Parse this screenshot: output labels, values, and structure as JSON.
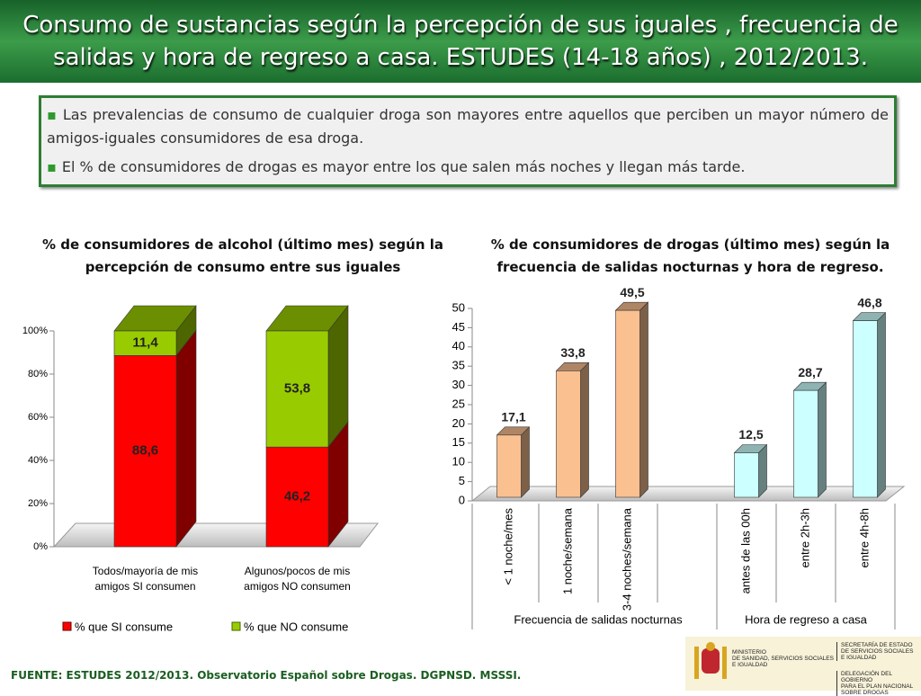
{
  "header": {
    "title": "Consumo de sustancias según la percepción de sus iguales , frecuencia de salidas y hora de regreso a casa. ESTUDES (14-18 años) , 2012/2013."
  },
  "bullets": [
    "Las prevalencias de consumo de cualquier droga son mayores entre aquellos que perciben un mayor número de amigos-iguales consumidores de esa droga.",
    "El % de consumidores de drogas es mayor entre los que salen más noches y llegan más tarde."
  ],
  "chart_data": [
    {
      "type": "stacked_bar",
      "title": "% de consumidores de alcohol (último mes)  según la percepción de consumo entre sus iguales",
      "categories": [
        "Todos/mayoría de mis amigos SI consumen",
        "Algunos/pocos de mis amigos NO consumen"
      ],
      "series": [
        {
          "name": "% que SI consume",
          "color": "#ff0000",
          "values": [
            88.6,
            46.2
          ],
          "value_labels": [
            "88,6",
            "46,2"
          ]
        },
        {
          "name": "% que NO consume",
          "color": "#99cc00",
          "values": [
            11.4,
            53.8
          ],
          "value_labels": [
            "11,4",
            "53,8"
          ]
        }
      ],
      "ylim": [
        0,
        100
      ],
      "yticks": [
        {
          "value": 0,
          "label": "0%"
        },
        {
          "value": 20,
          "label": "20%"
        },
        {
          "value": 40,
          "label": "40%"
        },
        {
          "value": 60,
          "label": "60%"
        },
        {
          "value": 80,
          "label": "80%"
        },
        {
          "value": 100,
          "label": "100%"
        }
      ],
      "legend": "bottom"
    },
    {
      "type": "bar",
      "title": "% de consumidores de drogas (último mes) según la frecuencia de salidas nocturnas y hora de regreso.",
      "groups": [
        {
          "label": "Frecuencia de salidas nocturnas",
          "color": "#fac090",
          "categories": [
            "< 1 noche/mes",
            "1 noche/semana",
            "3-4 noches/semana"
          ],
          "values": [
            17.1,
            33.8,
            49.5
          ],
          "value_labels": [
            "17,1",
            "33,8",
            "49,5"
          ]
        },
        {
          "label": "Hora de regreso a casa",
          "color": "#ccffff",
          "categories": [
            "antes de las 00h",
            "entre 2h-3h",
            "entre 4h-8h"
          ],
          "values": [
            12.5,
            28.7,
            46.8
          ],
          "value_labels": [
            "12,5",
            "28,7",
            "46,8"
          ]
        }
      ],
      "ylim": [
        0,
        50
      ],
      "yticks": [
        0,
        5,
        10,
        15,
        20,
        25,
        30,
        35,
        40,
        45,
        50
      ]
    }
  ],
  "footer": {
    "source": "FUENTE: ESTUDES 2012/2013. Observatorio Español sobre Drogas. DGPNSD. MSSSI.",
    "ministry": [
      "MINISTERIO",
      "DE SANIDAD, SERVICIOS SOCIALES",
      "E IGUALDAD"
    ],
    "secretariat": [
      "SECRETARÍA DE ESTADO",
      "DE SERVICIOS SOCIALES",
      "E IGUALDAD"
    ],
    "delegation": [
      "DELEGACIÓN DEL GOBIERNO",
      "PARA EL PLAN NACIONAL SOBRE DROGAS"
    ]
  }
}
